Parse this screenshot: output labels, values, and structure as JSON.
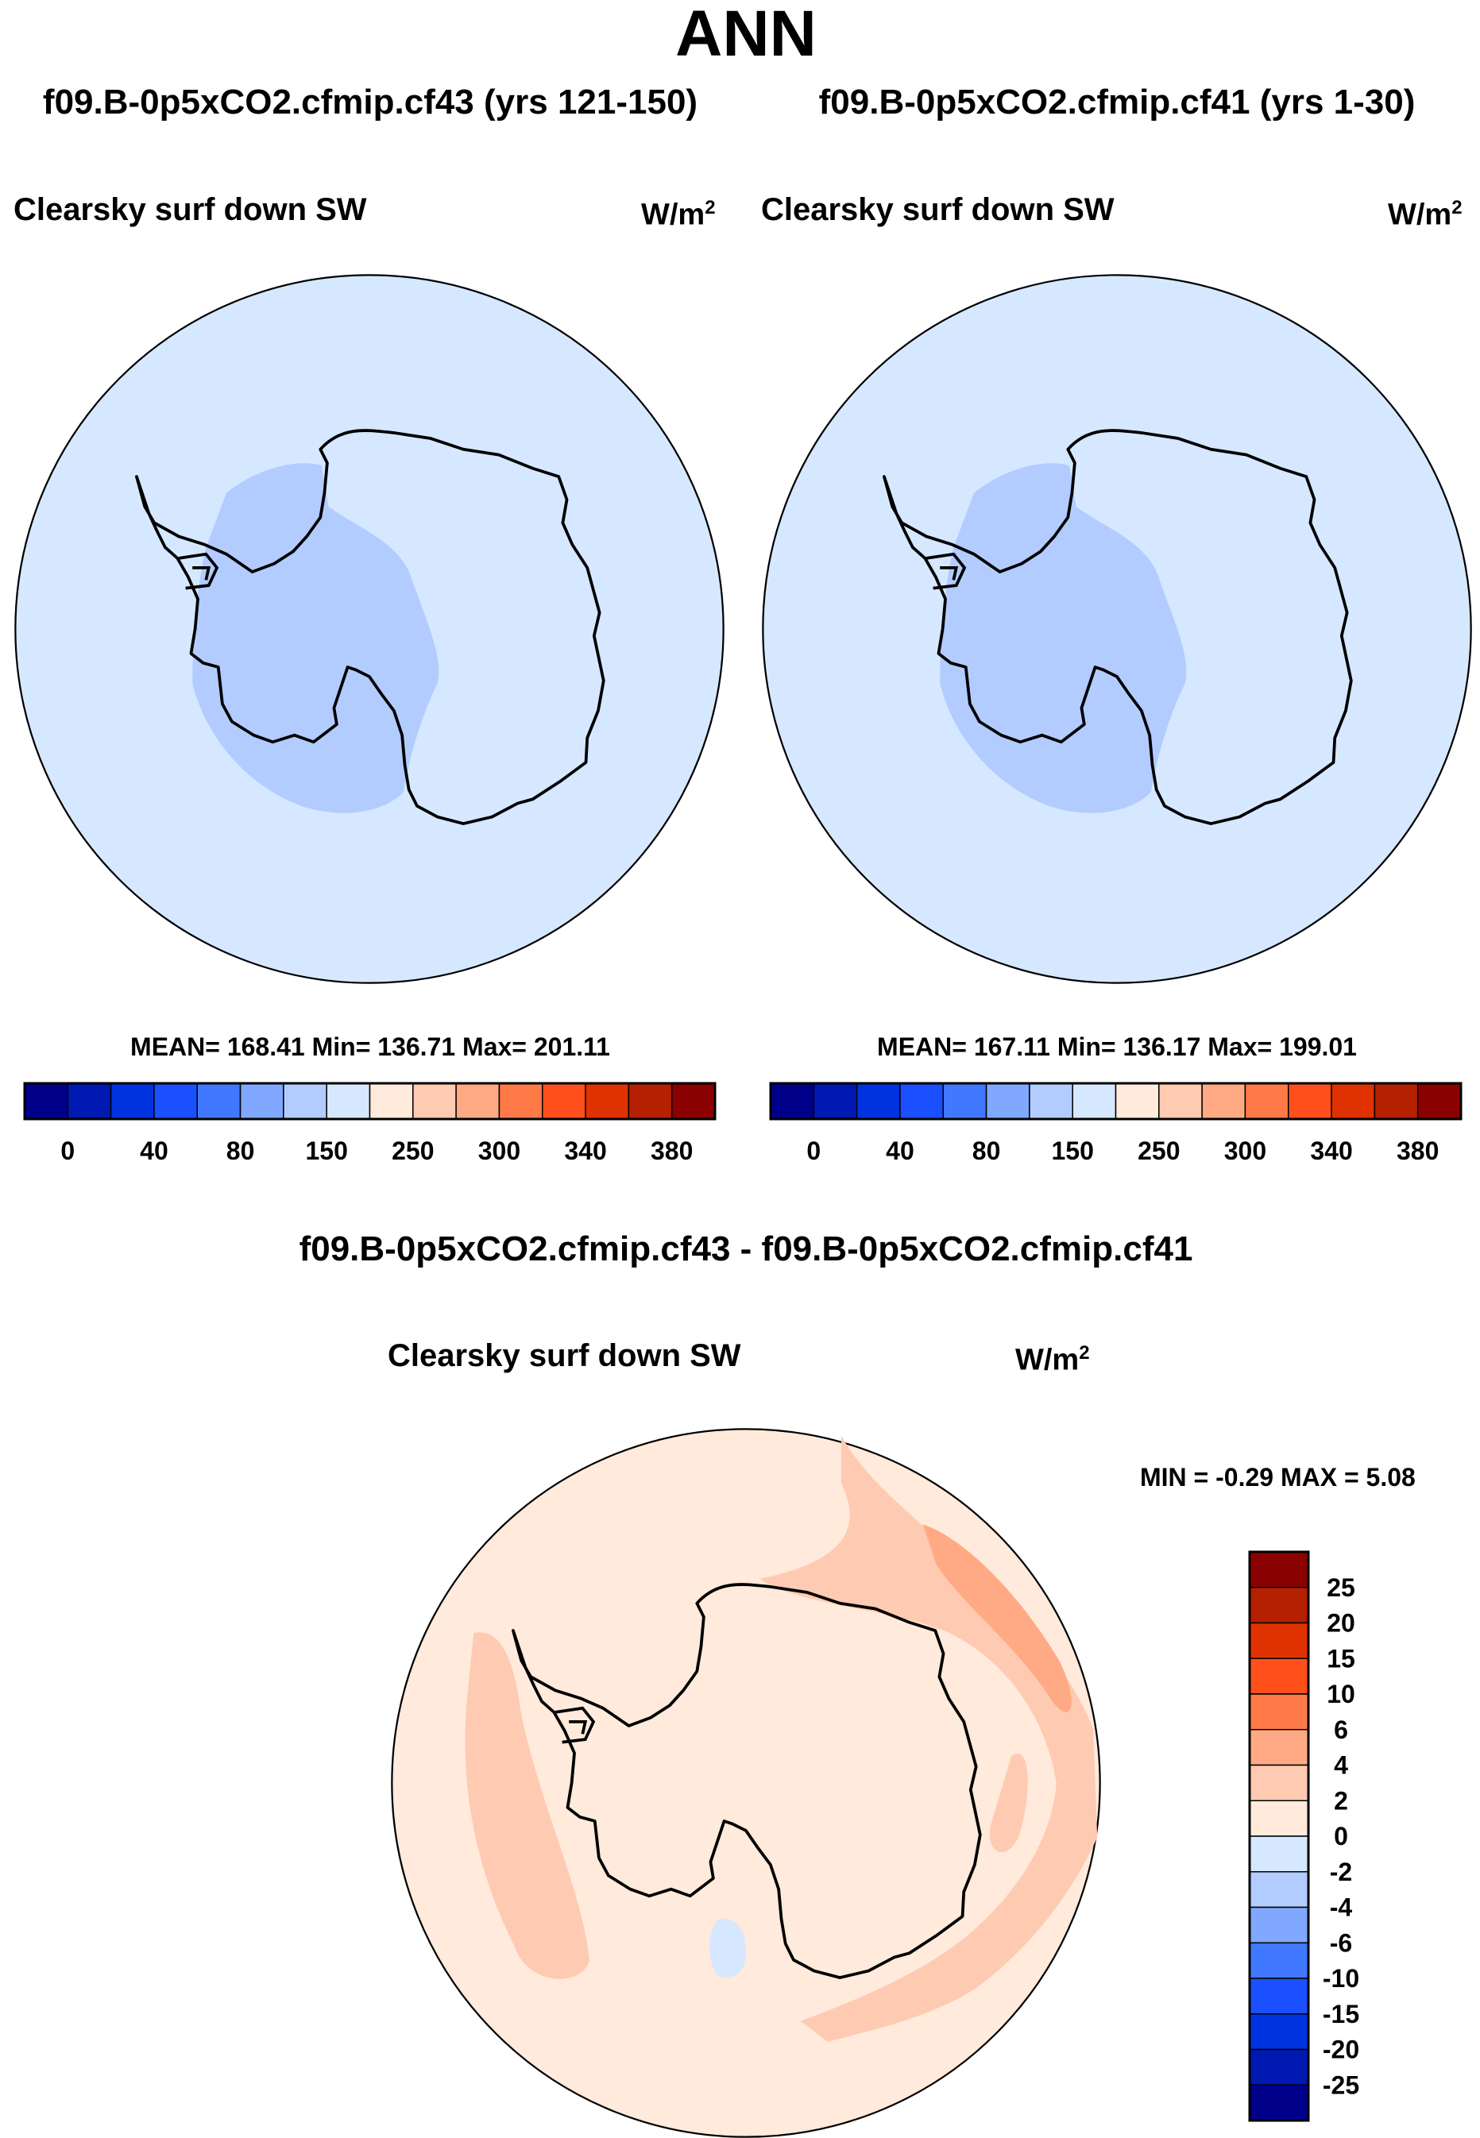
{
  "title": "ANN",
  "chart_data": {
    "type": "heatmap",
    "title": "ANN",
    "projection": "south polar stereographic",
    "colors": [
      "#00008a",
      "#0019b0",
      "#0033e0",
      "#1a50ff",
      "#4078ff",
      "#80a8ff",
      "#b3ccff",
      "#d6e8ff",
      "#ffeadb",
      "#ffcab2",
      "#ffaa84",
      "#ff7a46",
      "#ff501c",
      "#e03200",
      "#b42000",
      "#8b0000"
    ],
    "panels": [
      {
        "case": "f09.B-0p5xCO2.cfmip.cf43 (yrs 121-150)",
        "variable": "Clearsky surf down SW",
        "units": "W/m",
        "units_exp": "2",
        "stats": "MEAN= 168.41  Min= 136.71  Max= 201.11",
        "mean": 168.41,
        "min": 136.71,
        "max": 201.11,
        "colorbar_labels": [
          "0",
          "40",
          "80",
          "150",
          "250",
          "300",
          "340",
          "380"
        ]
      },
      {
        "case": "f09.B-0p5xCO2.cfmip.cf41 (yrs 1-30)",
        "variable": "Clearsky surf down SW",
        "units": "W/m",
        "units_exp": "2",
        "stats": "MEAN= 167.11  Min= 136.17  Max= 199.01",
        "mean": 167.11,
        "min": 136.17,
        "max": 199.01,
        "colorbar_labels": [
          "0",
          "40",
          "80",
          "150",
          "250",
          "300",
          "340",
          "380"
        ]
      },
      {
        "case": "f09.B-0p5xCO2.cfmip.cf43 - f09.B-0p5xCO2.cfmip.cf41",
        "variable": "Clearsky surf down SW",
        "units": "W/m",
        "units_exp": "2",
        "stats": "MIN =  -0.29 MAX =   5.08",
        "min": -0.29,
        "max": 5.08,
        "colorbar_labels": [
          "25",
          "20",
          "15",
          "10",
          "6",
          "4",
          "2",
          "0",
          "-2",
          "-4",
          "-6",
          "-10",
          "-15",
          "-20",
          "-25"
        ]
      }
    ]
  }
}
